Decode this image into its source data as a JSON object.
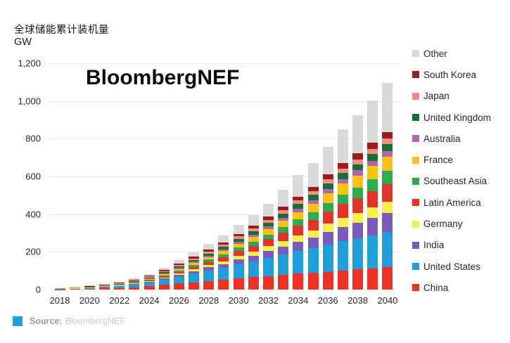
{
  "header": {
    "title": "全球储能累计装机量",
    "unit": "GW"
  },
  "watermark": "BloombergNEF",
  "footer": {
    "prefix": "Source:",
    "source": "BloombergNEF",
    "icon_color": "#1f9ed9"
  },
  "chart_data": {
    "type": "bar",
    "stacked": true,
    "title": "全球储能累计装机量",
    "ylabel": "GW",
    "ylim": [
      0,
      1200
    ],
    "grid": true,
    "legend_position": "right",
    "legend_order": "top of stack first (Other) to bottom (China)",
    "yticks": {
      "values": [
        1200,
        1000,
        800,
        600,
        400,
        200,
        0
      ],
      "labels": [
        "1,200",
        "1,000",
        "800",
        "600",
        "400",
        "200",
        "0"
      ]
    },
    "categories": [
      "2018",
      "2019",
      "2020",
      "2021",
      "2022",
      "2023",
      "2024",
      "2025",
      "2026",
      "2027",
      "2028",
      "2029",
      "2030",
      "2031",
      "2032",
      "2033",
      "2034",
      "2035",
      "2036",
      "2037",
      "2038",
      "2039",
      "2040"
    ],
    "xticks_shown": [
      "2018",
      "2020",
      "2022",
      "2024",
      "2026",
      "2028",
      "2030",
      "2032",
      "2034",
      "2036",
      "2038",
      "2040"
    ],
    "series": [
      {
        "name": "China",
        "color": "#ee3124",
        "values": [
          1.5,
          2.5,
          4.5,
          6,
          9,
          13,
          18,
          25,
          32,
          39,
          46,
          53,
          60,
          66,
          72,
          78,
          84,
          89,
          95,
          101,
          107,
          113,
          119
        ]
      },
      {
        "name": "United States",
        "color": "#1f9ed9",
        "values": [
          1.5,
          2.5,
          4.5,
          6.5,
          9.5,
          13.5,
          19,
          27,
          36,
          46,
          56,
          62,
          74,
          84,
          96,
          108,
          120,
          131,
          144,
          157,
          164,
          175,
          186
        ]
      },
      {
        "name": "India",
        "color": "#7a5bbc",
        "values": [
          0.1,
          0.2,
          0.4,
          0.8,
          1.5,
          2.5,
          4,
          6,
          9,
          12,
          16,
          20,
          25,
          30,
          36,
          43,
          50,
          57,
          67,
          75,
          83,
          92,
          101
        ]
      },
      {
        "name": "Germany",
        "color": "#f7ef4a",
        "values": [
          0.8,
          1,
          1.3,
          1.8,
          2.5,
          3.5,
          5,
          7,
          9,
          11,
          13,
          16,
          19,
          22,
          26,
          30,
          34,
          38,
          43,
          48,
          52,
          56,
          60
        ]
      },
      {
        "name": "Latin America",
        "color": "#e2342a",
        "values": [
          0.1,
          0.2,
          0.4,
          0.8,
          1.5,
          2.5,
          4,
          6,
          9,
          13,
          16,
          21,
          26,
          31,
          37,
          43,
          50,
          56,
          64,
          72,
          78,
          85.5,
          93
        ]
      },
      {
        "name": "Southeast Asia",
        "color": "#2dab4f",
        "values": [
          0.1,
          0.2,
          0.3,
          0.6,
          1.2,
          2,
          3.2,
          5,
          7,
          9.5,
          12,
          15,
          18,
          21,
          25,
          29,
          34,
          39,
          46,
          52,
          58,
          64,
          71
        ]
      },
      {
        "name": "France",
        "color": "#fcc211",
        "values": [
          0.2,
          0.3,
          0.5,
          0.8,
          1.4,
          2.2,
          3.5,
          5.5,
          8,
          11,
          13,
          17,
          21,
          25,
          29,
          34,
          39,
          44,
          51,
          57,
          63,
          69,
          75
        ]
      },
      {
        "name": "Australia",
        "color": "#b164ae",
        "values": [
          0.3,
          0.6,
          1,
          1.5,
          2,
          3,
          4,
          5,
          6,
          7.5,
          9,
          10.5,
          12,
          13.5,
          15,
          17,
          19,
          21,
          23,
          25,
          27,
          28.5,
          30
        ]
      },
      {
        "name": "United Kingdom",
        "color": "#177032",
        "values": [
          0.5,
          0.8,
          1.2,
          1.8,
          2.5,
          3.5,
          4.5,
          6,
          7.5,
          9,
          11,
          13,
          15,
          17,
          19,
          21,
          24,
          27,
          29,
          31,
          33,
          35,
          37
        ]
      },
      {
        "name": "Japan",
        "color": "#f28e80",
        "values": [
          1.5,
          2,
          2.5,
          3,
          3.5,
          4,
          5,
          6,
          7,
          8,
          9,
          10.5,
          12,
          13.5,
          15,
          17,
          19,
          21,
          23,
          25,
          26.5,
          28,
          30
        ]
      },
      {
        "name": "South Korea",
        "color": "#9c1b1f",
        "values": [
          1.8,
          2.4,
          2.8,
          3.2,
          3.6,
          4.2,
          5,
          6,
          7,
          8.5,
          10,
          11.5,
          13,
          15,
          17,
          19,
          21,
          23,
          25.5,
          28,
          30,
          32,
          34
        ]
      },
      {
        "name": "Other",
        "color": "#d9d9d9",
        "values": [
          0.6,
          1,
          1.6,
          2.5,
          4,
          6,
          9,
          13,
          18,
          25,
          33,
          38,
          48,
          57,
          68,
          90,
          113,
          126,
          148,
          179,
          202,
          226,
          259
        ]
      }
    ]
  }
}
